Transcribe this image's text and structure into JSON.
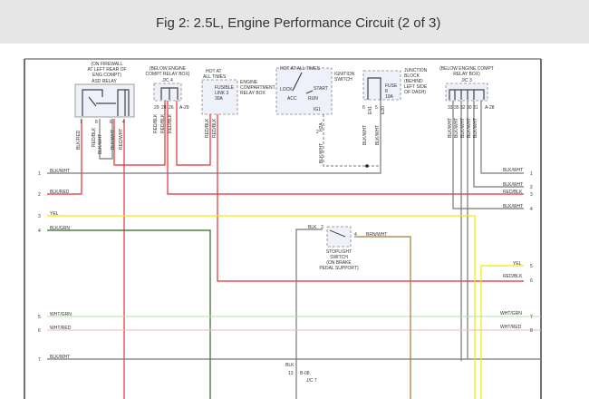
{
  "title": "Fig 2: 2.5L, Engine Performance Circuit (2 of 3)",
  "colors": {
    "red": "#e03030",
    "gray": "#777777",
    "yellow": "#f2ea00",
    "green": "#2e6b1e",
    "light_green": "#b8dcae",
    "light_red": "#f2b8b8",
    "brown": "#a07a3a"
  },
  "components": {
    "asd_relay": {
      "location": [
        "(ON FIREWALL",
        "AT LEFT REAR OF",
        "ENG COMPT)"
      ],
      "name": "ASD RELAY",
      "pins": [
        "7",
        "8",
        "6",
        "4"
      ],
      "wires": [
        "BLK/RED",
        "RED/BLK",
        "BLK/WHT",
        "BLK/WHT",
        "RED/WHT"
      ]
    },
    "jc4": {
      "location": [
        "(BELOW ENGINE",
        "COMPT RELAY BOX)"
      ],
      "name": "J/C 4",
      "connector": "A-29",
      "pins": [
        "29",
        "28",
        "26"
      ],
      "wires": [
        "RED/BLK",
        "RED/BLK",
        "RED/BLK"
      ]
    },
    "fusible_link": {
      "hot": [
        "HOT AT",
        "ALL TIMES"
      ],
      "name": [
        "FUSIBLE",
        "LINK 3",
        "30A"
      ],
      "box": [
        "ENGINE",
        "COMPARTMENT",
        "RELAY BOX"
      ],
      "wires": [
        "RED/BLK",
        "RED/BLK"
      ]
    },
    "ignition_switch": {
      "hot": "HOT AT ALL TIMES",
      "name": [
        "IGNITION",
        "SWITCH"
      ],
      "positions": [
        "LOCK",
        "ACC",
        "START",
        "RUN"
      ],
      "terminal": "IG1",
      "connector": "H2A",
      "pin": "2",
      "wire": "BLK/WHT"
    },
    "junction_block": {
      "name": [
        "JUNCTION",
        "BLOCK",
        "(BEHIND",
        "LEFT SIDE",
        "OF DASH)"
      ],
      "fuse": [
        "FUSE",
        "8",
        "10A"
      ],
      "connectors": [
        "E41",
        "E20"
      ],
      "pins": [
        "6",
        "5"
      ],
      "wires": [
        "BLK/WHT",
        "BLK/WHT"
      ]
    },
    "jc3": {
      "location": [
        "(BELOW ENGINE COMPT",
        "RELAY BOX)"
      ],
      "name": "J/C 3",
      "connector": "A-28",
      "pins": [
        "33",
        "35",
        "32",
        "30",
        "31"
      ],
      "wires": [
        "BLK/WHT",
        "BLK/WHT",
        "BLK/WHT",
        "BLK/WHT",
        "BLK/WHT"
      ]
    },
    "stoplight_switch": {
      "name": [
        "STOPLIGHT",
        "SWITCH",
        "(ON BRAKE",
        "PEDAL SUPPORT)"
      ],
      "pin_in": "3",
      "pin_out": "4",
      "wire_in": "BLK",
      "wire_out": "BRN/WHT"
    },
    "bottom_connector": {
      "wire": "BLK",
      "pin": "13",
      "connector": "B-08",
      "name": "J/C 7"
    }
  },
  "left_wires": [
    {
      "n": "1",
      "label": "BLK/WHT"
    },
    {
      "n": "2",
      "label": "BLK/RED"
    },
    {
      "n": "3",
      "label": "YEL"
    },
    {
      "n": "4",
      "label": "BLK/GRN"
    },
    {
      "n": "5",
      "label": "WHT/GRN"
    },
    {
      "n": "6",
      "label": "WHT/RED"
    },
    {
      "n": "7",
      "label": "BLK/WHT"
    }
  ],
  "right_wires": [
    {
      "n": "1",
      "label": "BLK/WHT"
    },
    {
      "n": "2",
      "label": "BLK/WHT"
    },
    {
      "n": "3",
      "label": "RED/BLK"
    },
    {
      "n": "4",
      "label": "BLK/WHT"
    },
    {
      "n": "5",
      "label": "YEL"
    },
    {
      "n": "6",
      "label": "RED/BLK"
    },
    {
      "n": "7",
      "label": "WHT/GRN"
    },
    {
      "n": "8",
      "label": "WHT/RED"
    }
  ]
}
